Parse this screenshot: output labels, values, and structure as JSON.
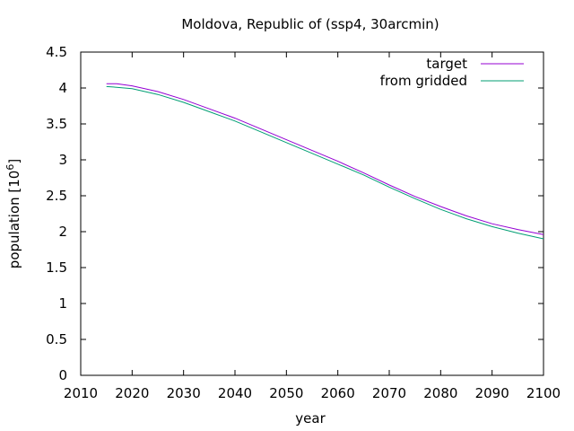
{
  "chart_data": {
    "type": "line",
    "title": "Moldova, Republic of (ssp4, 30arcmin)",
    "xlabel": "year",
    "ylabel_text": "population [10",
    "ylabel_sup": "6",
    "ylabel_close": "]",
    "xlim": [
      2010,
      2100
    ],
    "ylim": [
      0,
      4.5
    ],
    "xticks": [
      "2010",
      "2020",
      "2030",
      "2040",
      "2050",
      "2060",
      "2070",
      "2080",
      "2090",
      "2100"
    ],
    "yticks": [
      "0",
      "0.5",
      "1",
      "1.5",
      "2",
      "2.5",
      "3",
      "3.5",
      "4",
      "4.5"
    ],
    "grid": false,
    "legend_position": "top-right",
    "x": [
      2015,
      2017,
      2020,
      2025,
      2030,
      2035,
      2040,
      2045,
      2050,
      2055,
      2060,
      2065,
      2070,
      2075,
      2080,
      2085,
      2090,
      2095,
      2100
    ],
    "series": [
      {
        "name": "target",
        "color": "#9400d3",
        "values": [
          4.06,
          4.06,
          4.03,
          3.95,
          3.84,
          3.71,
          3.58,
          3.43,
          3.28,
          3.13,
          2.98,
          2.82,
          2.65,
          2.49,
          2.35,
          2.22,
          2.11,
          2.03,
          1.96
        ]
      },
      {
        "name": "from gridded",
        "color": "#009e73",
        "values": [
          4.02,
          4.01,
          3.99,
          3.91,
          3.8,
          3.67,
          3.54,
          3.39,
          3.24,
          3.09,
          2.94,
          2.79,
          2.62,
          2.46,
          2.31,
          2.18,
          2.07,
          1.98,
          1.9
        ]
      }
    ]
  }
}
